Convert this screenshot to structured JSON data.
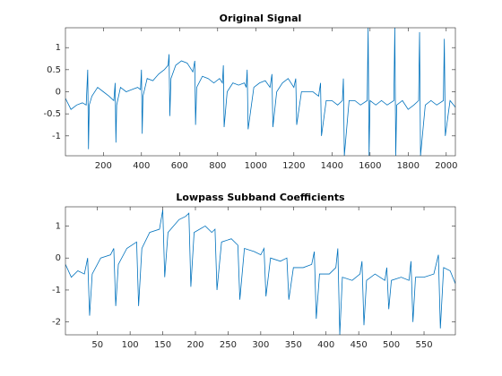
{
  "chart_data": [
    {
      "type": "line",
      "title": "Original Signal",
      "color": "#0072bd",
      "xlim": [
        1,
        2048
      ],
      "ylim": [
        -1.45,
        1.45
      ],
      "xticks": [
        200,
        400,
        600,
        800,
        1000,
        1200,
        1400,
        1600,
        1800,
        2000
      ],
      "yticks": [
        -1,
        -0.5,
        0,
        0.5,
        1
      ],
      "x": [
        1,
        30,
        60,
        90,
        110,
        118,
        122,
        126,
        140,
        170,
        200,
        230,
        255,
        262,
        266,
        270,
        290,
        320,
        350,
        380,
        395,
        400,
        404,
        408,
        430,
        460,
        490,
        520,
        540,
        545,
        549,
        555,
        580,
        610,
        640,
        670,
        680,
        684,
        690,
        720,
        750,
        780,
        810,
        825,
        830,
        834,
        850,
        880,
        910,
        940,
        950,
        955,
        960,
        990,
        1020,
        1050,
        1075,
        1085,
        1090,
        1110,
        1140,
        1170,
        1200,
        1210,
        1215,
        1240,
        1270,
        1300,
        1330,
        1340,
        1345,
        1370,
        1400,
        1430,
        1455,
        1460,
        1465,
        1490,
        1520,
        1550,
        1585,
        1590,
        1595,
        1600,
        1630,
        1660,
        1690,
        1725,
        1730,
        1735,
        1740,
        1770,
        1800,
        1830,
        1855,
        1860,
        1865,
        1890,
        1920,
        1950,
        1985,
        1990,
        1995,
        2020,
        2048
      ],
      "values": [
        -0.15,
        -0.4,
        -0.3,
        -0.25,
        -0.3,
        0.5,
        -1.3,
        -0.3,
        -0.1,
        0.1,
        0.0,
        -0.1,
        -0.2,
        0.2,
        -1.15,
        -0.3,
        0.1,
        0.0,
        0.05,
        0.1,
        0.05,
        0.5,
        -0.95,
        -0.1,
        0.3,
        0.25,
        0.4,
        0.5,
        0.6,
        0.85,
        -0.55,
        0.3,
        0.6,
        0.7,
        0.65,
        0.45,
        0.7,
        -0.75,
        0.1,
        0.35,
        0.3,
        0.2,
        0.3,
        0.2,
        0.6,
        -0.8,
        0.0,
        0.2,
        0.15,
        0.2,
        0.1,
        0.5,
        -0.85,
        0.1,
        0.2,
        0.25,
        0.1,
        0.4,
        -0.8,
        0.0,
        0.2,
        0.3,
        0.1,
        0.3,
        -0.75,
        0.0,
        0.0,
        0.0,
        -0.1,
        0.2,
        -1.0,
        -0.2,
        -0.2,
        -0.3,
        -0.2,
        0.3,
        -1.45,
        -0.2,
        -0.2,
        -0.3,
        -0.2,
        1.45,
        -1.45,
        -0.2,
        -0.3,
        -0.2,
        -0.3,
        -0.2,
        1.45,
        -1.45,
        -0.3,
        -0.2,
        -0.4,
        -0.3,
        -0.2,
        1.35,
        -1.45,
        -0.3,
        -0.2,
        -0.3,
        -0.2,
        1.2,
        -1.0,
        -0.2,
        -0.35
      ]
    },
    {
      "type": "line",
      "title": "Lowpass Subband Coefficients",
      "color": "#0072bd",
      "xlim": [
        1,
        598
      ],
      "ylim": [
        -2.4,
        1.6
      ],
      "xticks": [
        50,
        100,
        150,
        200,
        250,
        300,
        350,
        400,
        450,
        500,
        550
      ],
      "yticks": [
        -2,
        -1,
        0,
        1
      ],
      "x": [
        1,
        10,
        20,
        30,
        35,
        38,
        42,
        55,
        70,
        75,
        78,
        82,
        95,
        110,
        113,
        118,
        130,
        145,
        150,
        153,
        158,
        175,
        185,
        190,
        193,
        198,
        215,
        225,
        230,
        233,
        240,
        255,
        265,
        268,
        275,
        290,
        300,
        305,
        308,
        315,
        330,
        340,
        343,
        350,
        365,
        378,
        382,
        385,
        390,
        405,
        415,
        418,
        421,
        425,
        440,
        452,
        455,
        458,
        462,
        475,
        490,
        493,
        496,
        500,
        515,
        527,
        530,
        533,
        537,
        550,
        565,
        572,
        575,
        580,
        590,
        598
      ],
      "values": [
        -0.2,
        -0.6,
        -0.4,
        -0.5,
        0.0,
        -1.8,
        -0.5,
        0.0,
        0.1,
        0.3,
        -1.5,
        -0.2,
        0.3,
        0.5,
        -1.5,
        0.3,
        0.8,
        0.9,
        1.5,
        -0.6,
        0.8,
        1.2,
        1.3,
        1.4,
        -0.9,
        0.8,
        1.0,
        0.8,
        0.9,
        -1.0,
        0.5,
        0.6,
        0.4,
        -1.3,
        0.3,
        0.2,
        0.1,
        0.3,
        -1.2,
        0.0,
        -0.1,
        0.0,
        -1.3,
        -0.3,
        -0.3,
        -0.2,
        0.2,
        -1.9,
        -0.5,
        -0.5,
        -0.3,
        0.3,
        -2.4,
        -0.6,
        -0.7,
        -0.5,
        -0.1,
        -2.1,
        -0.7,
        -0.5,
        -0.7,
        -0.3,
        -1.6,
        -0.7,
        -0.6,
        -0.7,
        -0.1,
        -2.0,
        -0.6,
        -0.6,
        -0.5,
        0.1,
        -2.2,
        -0.3,
        -0.4,
        -0.8
      ]
    }
  ]
}
